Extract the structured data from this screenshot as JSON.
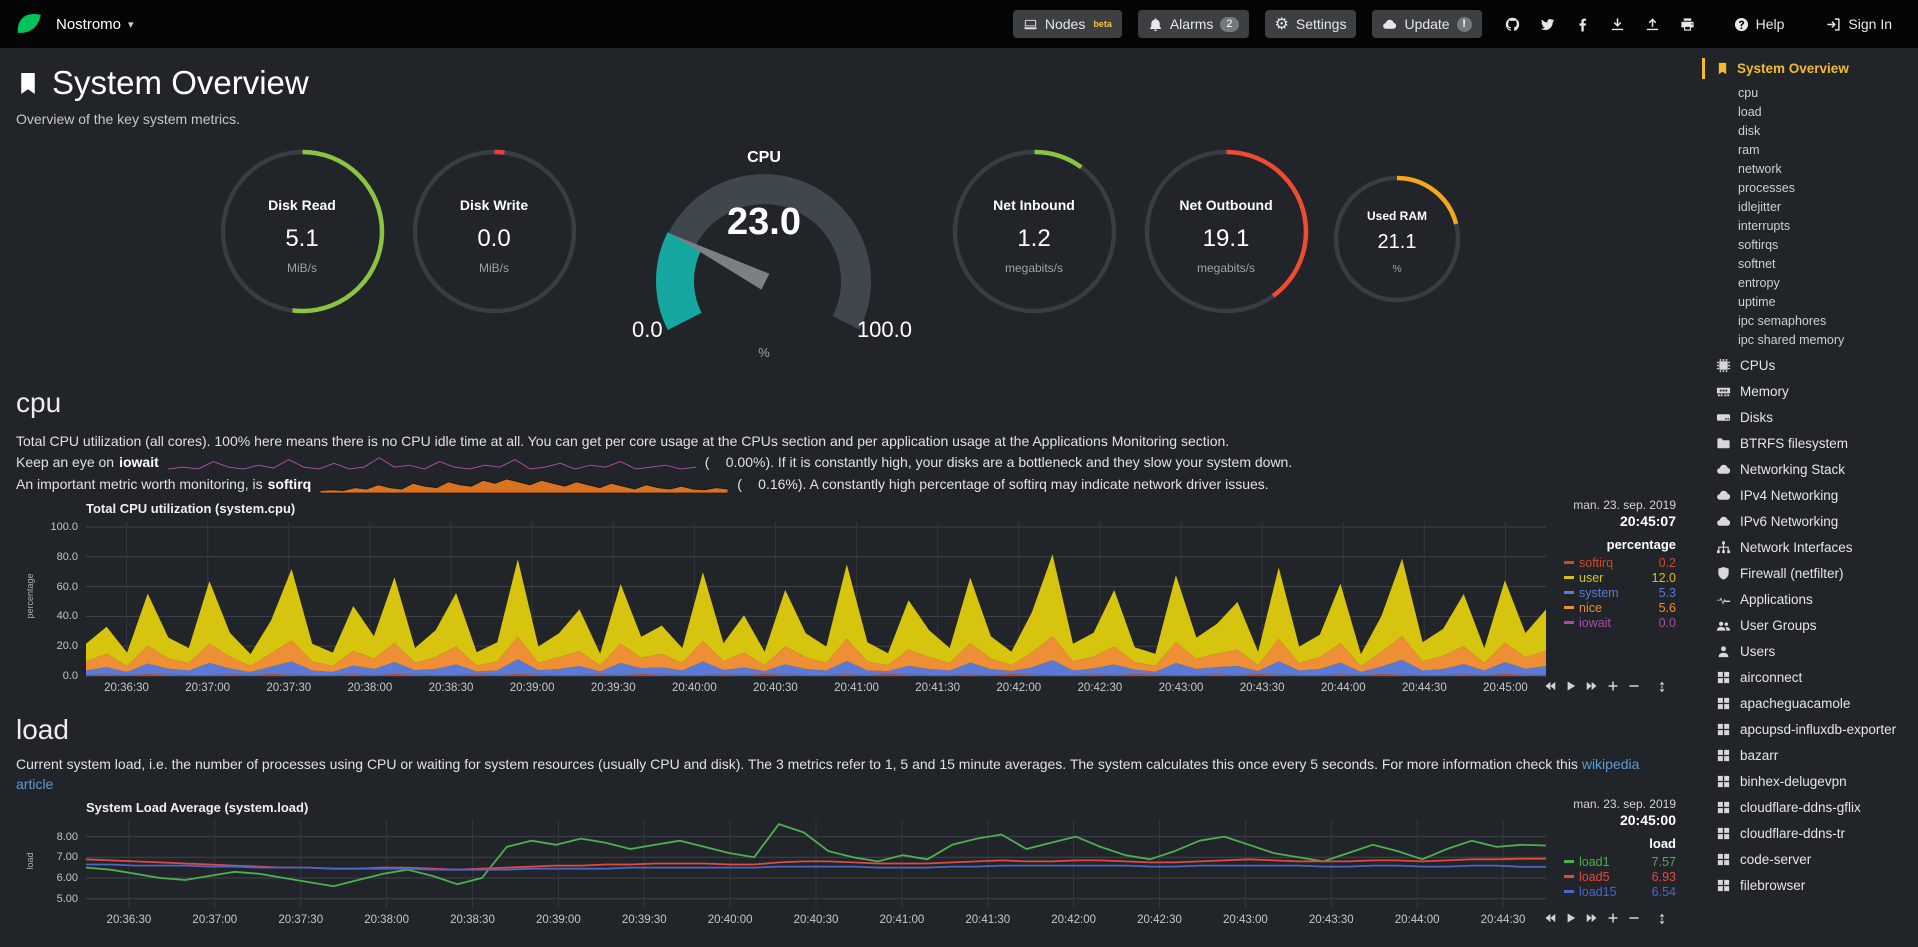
{
  "colors": {
    "accent_yellow": "#f4bc2c",
    "link_blue": "#5b9bd3",
    "logo_green": "#00c45a"
  },
  "topbar": {
    "hostname": "Nostromo",
    "items": [
      {
        "icon": "laptop",
        "label": "Nodes",
        "sup": "beta",
        "pill": true,
        "group": "nav"
      },
      {
        "icon": "bell",
        "label": "Alarms",
        "badge": "2",
        "pill": true,
        "group": "nav"
      },
      {
        "icon": "gear",
        "label": "Settings",
        "pill": true,
        "group": "nav"
      },
      {
        "icon": "cloud",
        "label": "Update",
        "badge": "!",
        "badge_shape": "round",
        "pill": true,
        "group": "nav"
      },
      {
        "icon": "github",
        "group": "social"
      },
      {
        "icon": "twitter",
        "group": "social"
      },
      {
        "icon": "facebook",
        "group": "social"
      },
      {
        "icon": "download",
        "group": "social"
      },
      {
        "icon": "upload",
        "group": "social"
      },
      {
        "icon": "print",
        "group": "social"
      },
      {
        "icon": "question",
        "label": "Help",
        "group": "end"
      },
      {
        "icon": "signin",
        "label": "Sign In",
        "group": "end"
      }
    ]
  },
  "page": {
    "title": "System Overview",
    "subtitle": "Overview of the key system metrics."
  },
  "gauges": [
    {
      "kind": "pie",
      "title": "Disk Read",
      "value": "5.1",
      "units": "MiB/s",
      "percent": 52,
      "color": "#8ac440"
    },
    {
      "kind": "pie",
      "title": "Disk Write",
      "value": "0.0",
      "units": "MiB/s",
      "percent": 2,
      "color": "#e6413a"
    },
    {
      "kind": "meter",
      "title": "CPU",
      "value": "23.0",
      "units": "%",
      "min": "0.0",
      "max": "100.0",
      "percent": 23,
      "color": "#16a7a0"
    },
    {
      "kind": "pie",
      "title": "Net Inbound",
      "value": "1.2",
      "units": "megabits/s",
      "percent": 10,
      "color": "#8ac440"
    },
    {
      "kind": "pie",
      "title": "Net Outbound",
      "value": "19.1",
      "units": "megabits/s",
      "percent": 40,
      "color": "#ef4b32"
    },
    {
      "kind": "pie",
      "small": true,
      "title": "Used RAM",
      "value": "21.1",
      "units": "%",
      "percent": 21,
      "color": "#f3a81c"
    }
  ],
  "cpu_section": {
    "heading": "cpu",
    "description": "Total CPU utilization (all cores). 100% here means there is no CPU idle time at all. You can get per core usage at the CPUs section and per application usage at the Applications Monitoring section.",
    "iowait": {
      "pre": "Keep an eye on",
      "bold": "iowait",
      "open": "(",
      "value": "0.00%",
      "rest": "). If it is constantly high, your disks are a bottleneck and they slow your system down.",
      "spark": [
        0,
        0.1,
        0,
        0.4,
        0.1,
        0,
        0.2,
        0.05,
        0.5,
        0.1,
        0,
        0.3,
        0,
        0.1,
        0.6,
        0.1,
        0.2,
        0,
        0.4,
        0.1,
        0,
        0.2,
        0.1,
        0.5,
        0,
        0.1,
        0.3,
        0,
        0.2,
        0.1,
        0.4,
        0,
        0.1,
        0.2,
        0,
        0.1
      ],
      "spark_color": "#a64ea3"
    },
    "softirq": {
      "pre": "An important metric worth monitoring, is",
      "bold": "softirq",
      "open": "(",
      "value": "0.16%",
      "rest": "). A constantly high percentage of softirq may indicate network driver issues.",
      "spark": [
        0.1,
        0.15,
        0.1,
        0.3,
        0.2,
        0.5,
        0.3,
        0.2,
        0.6,
        0.4,
        0.3,
        0.7,
        0.5,
        0.4,
        0.8,
        0.6,
        0.9,
        0.7,
        0.5,
        0.8,
        0.6,
        0.4,
        0.7,
        0.5,
        0.3,
        0.6,
        0.4,
        0.2,
        0.5,
        0.3,
        0.2,
        0.4,
        0.2,
        0.15,
        0.3,
        0.2
      ],
      "spark_color": "#d9731f"
    }
  },
  "load_section": {
    "heading": "load",
    "description": "Current system load, i.e. the number of processes using CPU or waiting for system resources (usually CPU and disk). The 3 metrics refer to 1, 5 and 15 minute averages. The system calculates this once every 5 seconds. For more information check this ",
    "link_text": "wikipedia article"
  },
  "chart_data": [
    {
      "name": "system-cpu-chart",
      "type": "stacked",
      "title": "Total CPU utilization (system.cpu)",
      "date": "man. 23. sep. 2019",
      "time": "20:45:07",
      "units": "percentage",
      "legend_header": "percentage",
      "ymin": 0,
      "ymax": 104,
      "yticks": [
        {
          "v": 100,
          "label": "100.0"
        },
        {
          "v": 80,
          "label": "80.0"
        },
        {
          "v": 60,
          "label": "60.0"
        },
        {
          "v": 40,
          "label": "40.0"
        },
        {
          "v": 20,
          "label": "20.0"
        },
        {
          "v": 0,
          "label": "0.0"
        }
      ],
      "xticks": [
        "20:36:30",
        "20:37:00",
        "20:37:30",
        "20:38:00",
        "20:38:30",
        "20:39:00",
        "20:39:30",
        "20:40:00",
        "20:40:30",
        "20:41:00",
        "20:41:30",
        "20:42:00",
        "20:42:30",
        "20:43:00",
        "20:43:30",
        "20:44:00",
        "20:44:30",
        "20:45:00"
      ],
      "legend": [
        {
          "name": "softirq",
          "value": "0.2",
          "color": "#cf4a21"
        },
        {
          "name": "user",
          "value": "12.0",
          "color": "#d6c40f"
        },
        {
          "name": "system",
          "value": "5.3",
          "color": "#5b7ad5"
        },
        {
          "name": "nice",
          "value": "5.6",
          "color": "#ee8e35"
        },
        {
          "name": "iowait",
          "value": "0.0",
          "color": "#a64ea3"
        }
      ],
      "series": [
        {
          "name": "iowait",
          "color": "#a64ea3",
          "values": [
            0.1,
            0,
            0.3,
            0.1,
            0,
            0.2,
            0.1,
            0,
            0.3,
            0.1,
            0,
            0.2,
            0.1,
            0,
            0.3,
            0.1,
            0,
            0.2,
            0.1,
            0,
            0.3,
            0.1,
            0,
            0.2,
            0.1,
            0,
            0.3,
            0.1,
            0,
            0.2,
            0.1,
            0,
            0.3,
            0.1,
            0,
            0.2,
            0.1,
            0,
            0.3,
            0.1,
            0,
            0.2,
            0.1,
            0,
            0.3,
            0.1,
            0,
            0.2,
            0.1,
            0,
            0.3,
            0.1,
            0,
            0.2,
            0.1,
            0,
            0.3,
            0.1,
            0,
            0.2,
            0.1,
            0,
            0.3,
            0.1,
            0,
            0.2,
            0.1,
            0,
            0.3,
            0.1,
            0,
            0.2
          ]
        },
        {
          "name": "softirq",
          "color": "#cf4a21",
          "values": [
            0.6,
            1,
            0.4,
            1.2,
            0.8,
            0.5,
            0.6,
            1,
            0.4,
            1.2,
            0.8,
            0.5,
            0.6,
            1,
            0.4,
            1.2,
            0.8,
            0.5,
            0.6,
            1,
            0.4,
            1.2,
            0.8,
            0.5,
            0.6,
            1,
            0.4,
            1.2,
            0.8,
            0.5,
            0.6,
            1,
            0.4,
            1.2,
            0.8,
            0.5,
            0.6,
            1,
            0.4,
            1.2,
            0.8,
            0.5,
            0.6,
            1,
            0.4,
            1.2,
            0.8,
            0.5,
            0.6,
            1,
            0.4,
            1.2,
            0.8,
            0.5,
            0.6,
            1,
            0.4,
            1.2,
            0.8,
            0.5,
            0.6,
            1,
            0.4,
            1.2,
            0.8,
            0.5,
            0.6,
            1,
            0.4,
            1.2,
            0.8,
            0.5
          ]
        },
        {
          "name": "system",
          "color": "#5b7ad5",
          "values": [
            3,
            5,
            2,
            7,
            4,
            3,
            8,
            4,
            2,
            5,
            9,
            3,
            2,
            6,
            4,
            8,
            3,
            4,
            7,
            2,
            3,
            10,
            3,
            4,
            6,
            2,
            8,
            4,
            5,
            3,
            9,
            3,
            5,
            2,
            7,
            4,
            3,
            9,
            3,
            2,
            6,
            4,
            3,
            8,
            4,
            2,
            5,
            10,
            3,
            4,
            7,
            3,
            2,
            8,
            4,
            5,
            6,
            2,
            9,
            3,
            4,
            8,
            2,
            5,
            10,
            3,
            4,
            7,
            3,
            8,
            4,
            6
          ]
        },
        {
          "name": "nice",
          "color": "#ee8e35",
          "values": [
            6,
            9,
            4,
            12,
            7,
            5,
            13,
            8,
            4,
            9,
            14,
            6,
            4,
            10,
            7,
            13,
            5,
            8,
            12,
            4,
            6,
            15,
            5,
            8,
            10,
            4,
            13,
            7,
            9,
            5,
            14,
            6,
            10,
            4,
            12,
            8,
            5,
            15,
            6,
            4,
            11,
            8,
            5,
            13,
            7,
            4,
            10,
            16,
            6,
            8,
            12,
            5,
            4,
            14,
            7,
            9,
            11,
            4,
            15,
            5,
            8,
            13,
            4,
            10,
            16,
            6,
            9,
            12,
            5,
            13,
            8,
            10
          ]
        },
        {
          "name": "user",
          "color": "#d6c40f",
          "values": [
            12,
            18,
            9,
            35,
            14,
            10,
            42,
            16,
            8,
            22,
            48,
            12,
            9,
            30,
            15,
            44,
            10,
            18,
            36,
            9,
            13,
            52,
            11,
            16,
            28,
            8,
            40,
            14,
            19,
            10,
            46,
            12,
            25,
            9,
            38,
            16,
            11,
            50,
            13,
            8,
            33,
            18,
            10,
            44,
            15,
            9,
            27,
            55,
            12,
            16,
            38,
            10,
            8,
            45,
            14,
            20,
            32,
            9,
            48,
            11,
            15,
            40,
            8,
            24,
            52,
            13,
            18,
            35,
            10,
            42,
            16,
            28
          ]
        }
      ]
    },
    {
      "name": "system-load-chart",
      "type": "line",
      "title": "System Load Average (system.load)",
      "date": "man. 23. sep. 2019",
      "time": "20:45:00",
      "units": "load",
      "legend_header": "load",
      "ymin": 4.55,
      "ymax": 8.8,
      "yticks": [
        {
          "v": 8,
          "label": "8.00"
        },
        {
          "v": 7,
          "label": "7.00"
        },
        {
          "v": 6,
          "label": "6.00"
        },
        {
          "v": 5,
          "label": "5.00"
        }
      ],
      "xticks": [
        "20:36:30",
        "20:37:00",
        "20:37:30",
        "20:38:00",
        "20:38:30",
        "20:39:00",
        "20:39:30",
        "20:40:00",
        "20:40:30",
        "20:41:00",
        "20:41:30",
        "20:42:00",
        "20:42:30",
        "20:43:00",
        "20:43:30",
        "20:44:00",
        "20:44:30"
      ],
      "legend": [
        {
          "name": "load1",
          "value": "7.57",
          "color": "#4caf50"
        },
        {
          "name": "load5",
          "value": "6.93",
          "color": "#e2493d"
        },
        {
          "name": "load15",
          "value": "6.54",
          "color": "#4b65c9"
        }
      ],
      "series": [
        {
          "name": "load1",
          "color": "#4caf50",
          "values": [
            6.5,
            6.4,
            6.2,
            6.0,
            5.9,
            6.1,
            6.3,
            6.2,
            6.0,
            5.8,
            5.6,
            5.9,
            6.2,
            6.4,
            6.1,
            5.7,
            6.0,
            7.5,
            7.8,
            7.6,
            7.9,
            7.7,
            7.4,
            7.6,
            7.8,
            7.5,
            7.2,
            7.0,
            8.6,
            8.2,
            7.3,
            7.0,
            6.8,
            7.1,
            6.9,
            7.6,
            7.9,
            8.1,
            7.4,
            7.7,
            8.0,
            7.5,
            7.1,
            6.9,
            7.3,
            7.8,
            8.0,
            7.6,
            7.2,
            7.0,
            6.8,
            7.2,
            7.6,
            7.3,
            6.9,
            7.4,
            7.8,
            7.5,
            7.6,
            7.57
          ]
        },
        {
          "name": "load5",
          "color": "#e2493d",
          "values": [
            6.9,
            6.85,
            6.8,
            6.75,
            6.7,
            6.65,
            6.6,
            6.55,
            6.5,
            6.5,
            6.45,
            6.45,
            6.5,
            6.5,
            6.45,
            6.4,
            6.45,
            6.5,
            6.55,
            6.6,
            6.6,
            6.65,
            6.65,
            6.7,
            6.7,
            6.7,
            6.65,
            6.65,
            6.75,
            6.8,
            6.8,
            6.75,
            6.7,
            6.7,
            6.7,
            6.75,
            6.8,
            6.85,
            6.8,
            6.8,
            6.85,
            6.85,
            6.8,
            6.75,
            6.75,
            6.8,
            6.85,
            6.9,
            6.85,
            6.8,
            6.8,
            6.8,
            6.85,
            6.85,
            6.8,
            6.85,
            6.9,
            6.9,
            6.93,
            6.93
          ]
        },
        {
          "name": "load15",
          "color": "#4b65c9",
          "values": [
            6.65,
            6.65,
            6.6,
            6.6,
            6.6,
            6.55,
            6.55,
            6.5,
            6.5,
            6.5,
            6.45,
            6.45,
            6.45,
            6.45,
            6.4,
            6.4,
            6.4,
            6.4,
            6.45,
            6.45,
            6.45,
            6.45,
            6.5,
            6.5,
            6.5,
            6.5,
            6.5,
            6.5,
            6.55,
            6.55,
            6.55,
            6.55,
            6.5,
            6.5,
            6.5,
            6.55,
            6.55,
            6.6,
            6.6,
            6.6,
            6.6,
            6.6,
            6.6,
            6.55,
            6.55,
            6.6,
            6.6,
            6.6,
            6.6,
            6.6,
            6.55,
            6.55,
            6.6,
            6.6,
            6.55,
            6.55,
            6.6,
            6.6,
            6.54,
            6.54
          ]
        }
      ]
    }
  ],
  "sidebar": {
    "active": {
      "label": "System Overview",
      "icon": "bookmark"
    },
    "subitems": [
      "cpu",
      "load",
      "disk",
      "ram",
      "network",
      "processes",
      "idlejitter",
      "interrupts",
      "softirqs",
      "softnet",
      "entropy",
      "uptime",
      "ipc semaphores",
      "ipc shared memory"
    ],
    "sections": [
      {
        "label": "CPUs",
        "icon": "chip"
      },
      {
        "label": "Memory",
        "icon": "memory"
      },
      {
        "label": "Disks",
        "icon": "hdd"
      },
      {
        "label": "BTRFS filesystem",
        "icon": "folder"
      },
      {
        "label": "Networking Stack",
        "icon": "cloud"
      },
      {
        "label": "IPv4 Networking",
        "icon": "cloud"
      },
      {
        "label": "IPv6 Networking",
        "icon": "cloud"
      },
      {
        "label": "Network Interfaces",
        "icon": "sitemap"
      },
      {
        "label": "Firewall (netfilter)",
        "icon": "shield"
      },
      {
        "label": "Applications",
        "icon": "heartbeat"
      },
      {
        "label": "User Groups",
        "icon": "users"
      },
      {
        "label": "Users",
        "icon": "user"
      },
      {
        "label": "airconnect",
        "icon": "grid"
      },
      {
        "label": "apacheguacamole",
        "icon": "grid"
      },
      {
        "label": "apcupsd-influxdb-exporter",
        "icon": "grid"
      },
      {
        "label": "bazarr",
        "icon": "grid"
      },
      {
        "label": "binhex-delugevpn",
        "icon": "grid"
      },
      {
        "label": "cloudflare-ddns-gflix",
        "icon": "grid"
      },
      {
        "label": "cloudflare-ddns-tr",
        "icon": "grid"
      },
      {
        "label": "code-server",
        "icon": "grid"
      },
      {
        "label": "filebrowser",
        "icon": "grid"
      }
    ]
  }
}
